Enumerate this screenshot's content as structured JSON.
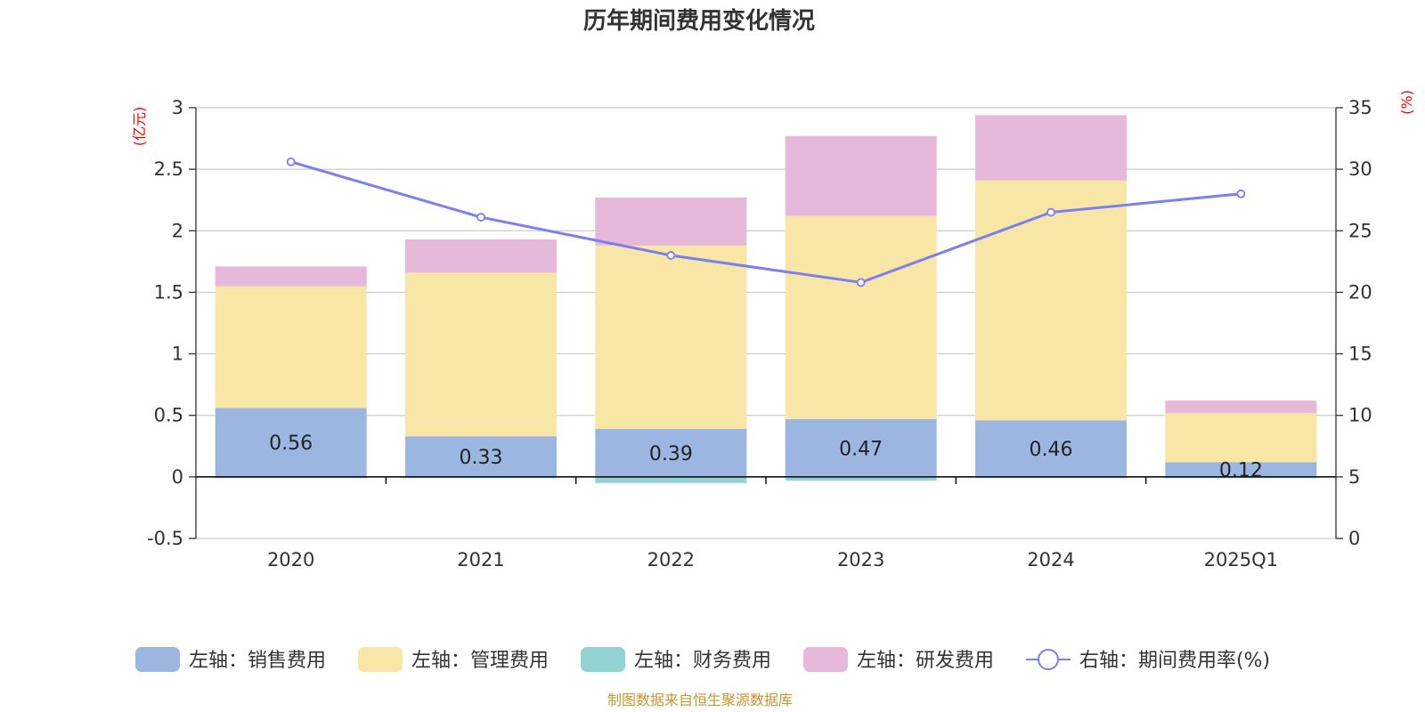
{
  "title": "历年期间费用变化情况",
  "source": "制图数据来自恒生聚源数据库",
  "colors": {
    "sales": "#9bb6e0",
    "admin": "#f8e6a6",
    "finance": "#93d2d3",
    "rd": "#e6b8da",
    "rate_line": "#7b7ff0",
    "grid": "#cccccc",
    "axis": "#333333",
    "unit": "#ff0000"
  },
  "chart_data": {
    "type": "bar",
    "stacked": true,
    "categories": [
      "2020",
      "2021",
      "2022",
      "2023",
      "2024",
      "2025Q1"
    ],
    "left_axis": {
      "unit_label": "(亿元)",
      "ylim": [
        -0.5,
        3
      ],
      "ticks": [
        "-0.5",
        "0",
        "0.5",
        "1",
        "1.5",
        "2",
        "2.5",
        "3"
      ]
    },
    "right_axis": {
      "unit_label": "(%)",
      "ylim": [
        0,
        35
      ],
      "ticks": [
        "0",
        "5",
        "10",
        "15",
        "20",
        "25",
        "30",
        "35"
      ]
    },
    "series": [
      {
        "name": "左轴：销售费用",
        "key": "sales",
        "axis": "left",
        "type": "bar",
        "values": [
          0.56,
          0.33,
          0.39,
          0.47,
          0.46,
          0.12
        ],
        "labels": [
          "0.56",
          "0.33",
          "0.39",
          "0.47",
          "0.46",
          "0.12"
        ]
      },
      {
        "name": "左轴：管理费用",
        "key": "admin",
        "axis": "left",
        "type": "bar",
        "values": [
          0.99,
          1.33,
          1.49,
          1.65,
          1.95,
          0.4
        ]
      },
      {
        "name": "左轴：财务费用",
        "key": "finance",
        "axis": "left",
        "type": "bar",
        "values": [
          -0.01,
          -0.01,
          -0.05,
          -0.03,
          -0.01,
          -0.01
        ]
      },
      {
        "name": "左轴：研发费用",
        "key": "rd",
        "axis": "left",
        "type": "bar",
        "values": [
          0.16,
          0.27,
          0.39,
          0.65,
          0.53,
          0.1
        ]
      },
      {
        "name": "右轴：期间费用率(%)",
        "key": "rate",
        "axis": "right",
        "type": "line",
        "values": [
          30.6,
          26.1,
          23.0,
          20.8,
          26.5,
          28.0
        ]
      }
    ],
    "legend_position": "bottom",
    "grid": true
  }
}
